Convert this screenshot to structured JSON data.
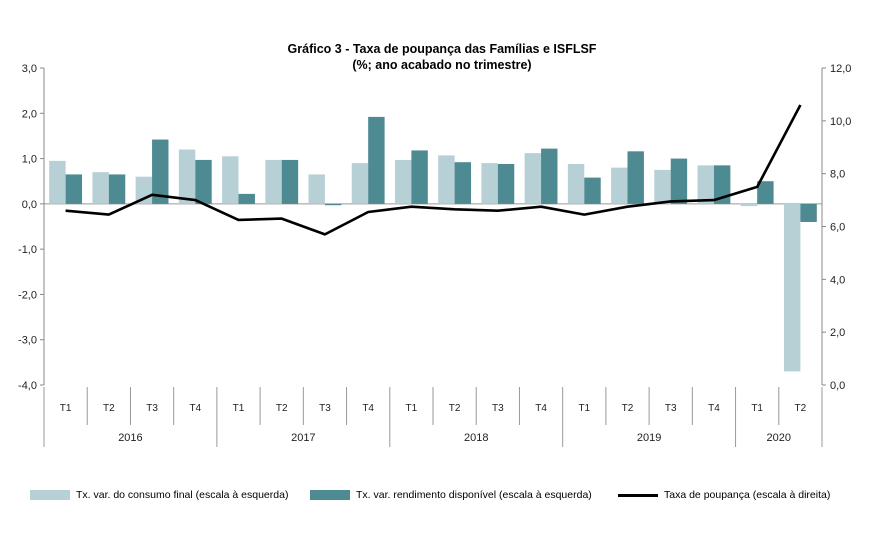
{
  "chart_data": {
    "type": "bar+line",
    "title": "Gráfico  3 - Taxa de poupança das Famílias e ISFLSF",
    "subtitle": "(%; ano acabado no trimestre)",
    "quarters": [
      "T1",
      "T2",
      "T3",
      "T4",
      "T1",
      "T2",
      "T3",
      "T4",
      "T1",
      "T2",
      "T3",
      "T4",
      "T1",
      "T2",
      "T3",
      "T4",
      "T1",
      "T2"
    ],
    "years": [
      {
        "label": "2016",
        "start": 0,
        "count": 4
      },
      {
        "label": "2017",
        "start": 4,
        "count": 4
      },
      {
        "label": "2018",
        "start": 8,
        "count": 4
      },
      {
        "label": "2019",
        "start": 12,
        "count": 4
      },
      {
        "label": "2020",
        "start": 16,
        "count": 2
      }
    ],
    "left_axis": {
      "min": -4.0,
      "max": 3.0,
      "ticks": [
        "3,0",
        "2,0",
        "1,0",
        "0,0",
        "-1,0",
        "-2,0",
        "-3,0",
        "-4,0"
      ],
      "tick_values": [
        3,
        2,
        1,
        0,
        -1,
        -2,
        -3,
        -4
      ]
    },
    "right_axis": {
      "min": 0,
      "max": 12,
      "ticks": [
        "12,0",
        "10,0",
        "8,0",
        "6,0",
        "4,0",
        "2,0",
        "0,0"
      ],
      "tick_values": [
        12,
        10,
        8,
        6,
        4,
        2,
        0
      ]
    },
    "series": [
      {
        "name": "Tx. var. do consumo final (escala à esquerda)",
        "axis": "left",
        "kind": "bar",
        "color": "#b7d0d6",
        "values": [
          0.95,
          0.7,
          0.6,
          1.2,
          1.05,
          0.97,
          0.65,
          0.9,
          0.97,
          1.07,
          0.9,
          1.12,
          0.88,
          0.8,
          0.75,
          0.85,
          -0.05,
          -3.7
        ]
      },
      {
        "name": "Tx. var. rendimento disponível (escala à esquerda)",
        "axis": "left",
        "kind": "bar",
        "color": "#4e8a92",
        "values": [
          0.65,
          0.65,
          1.42,
          0.97,
          0.22,
          0.97,
          -0.03,
          1.92,
          1.18,
          0.92,
          0.88,
          1.22,
          0.58,
          1.16,
          1.0,
          0.85,
          0.5,
          -0.4
        ]
      },
      {
        "name": "Taxa de poupança (escala à direita)",
        "axis": "right",
        "kind": "line",
        "color": "#000000",
        "values": [
          6.6,
          6.45,
          7.2,
          7.0,
          6.25,
          6.3,
          5.7,
          6.55,
          6.75,
          6.65,
          6.6,
          6.75,
          6.45,
          6.75,
          6.95,
          7.0,
          7.5,
          10.6
        ]
      }
    ],
    "legend_position": "bottom",
    "grid": false
  }
}
